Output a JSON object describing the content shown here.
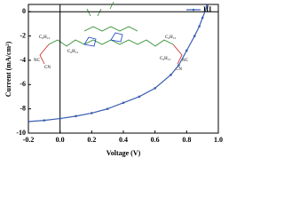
{
  "chart_data": {
    "type": "line",
    "x_label": "Voltage (V)",
    "y_label": "Current (mA/cm²)",
    "series": [
      {
        "name": "III",
        "color": "#3a5fb0",
        "x": [
          -0.2,
          -0.1,
          0.0,
          0.1,
          0.2,
          0.3,
          0.4,
          0.5,
          0.6,
          0.7,
          0.75,
          0.8,
          0.85,
          0.88,
          0.9,
          0.93
        ],
        "values": [
          -9.05,
          -8.95,
          -8.8,
          -8.6,
          -8.35,
          -8.0,
          -7.5,
          -7.0,
          -6.3,
          -5.2,
          -4.4,
          -3.2,
          -2.0,
          -1.2,
          -0.5,
          0.5
        ]
      }
    ],
    "xlim": [
      -0.2,
      1.0
    ],
    "xticks": [
      {
        "value": -0.2,
        "label": "-0.2"
      },
      {
        "value": 0.0,
        "label": "0.0"
      },
      {
        "value": 0.2,
        "label": "0.2"
      },
      {
        "value": 0.4,
        "label": "0.4"
      },
      {
        "value": 0.6,
        "label": "0.6"
      },
      {
        "value": 0.8,
        "label": "0.8"
      },
      {
        "value": 1.0,
        "label": "1.0"
      }
    ],
    "ylim": [
      -10,
      0.6
    ],
    "yticks": [
      0,
      -2,
      -4,
      -6,
      -8,
      -10
    ],
    "legend": "top-right",
    "annotations": [
      "C₆H₁₃",
      "NC",
      "CN",
      "C₆H₁₃",
      "C₆H₁₃",
      "C₆H₁₃",
      "NC",
      "CN"
    ]
  }
}
